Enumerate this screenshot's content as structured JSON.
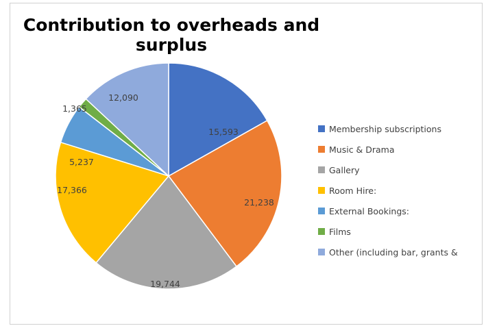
{
  "chart_data": {
    "type": "pie",
    "title": "Contribution to overheads and surplus",
    "categories": [
      "Membership subscriptions",
      "Music & Drama",
      "Gallery",
      "Room Hire:",
      "External Bookings:",
      "Films",
      "Other (including bar, grants &"
    ],
    "values": [
      15593,
      21238,
      19744,
      17366,
      5237,
      1365,
      12090
    ],
    "labels": [
      "15,593",
      "21,238",
      "19,744",
      "17,366",
      "5,237",
      "1,365",
      "12,090"
    ],
    "colors": [
      "#4472c4",
      "#ed7d31",
      "#a5a5a5",
      "#ffc000",
      "#5b9bd5",
      "#70ad47",
      "#8faadc"
    ],
    "legend_position": "right"
  }
}
